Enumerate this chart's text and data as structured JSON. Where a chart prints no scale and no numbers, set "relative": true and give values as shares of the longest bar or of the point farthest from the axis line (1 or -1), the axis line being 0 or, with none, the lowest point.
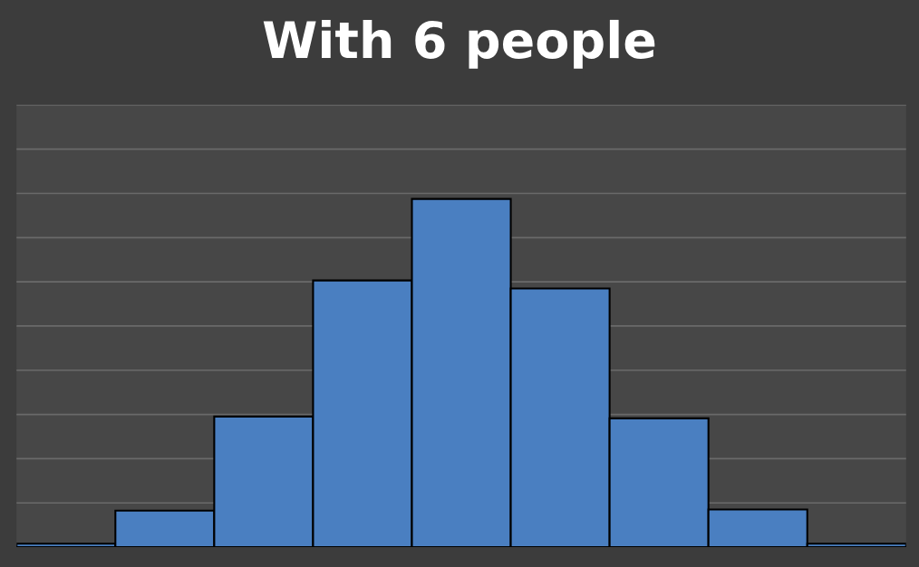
{
  "chart_data": {
    "type": "bar",
    "title": "With 6 people",
    "relative": true,
    "grid": "y",
    "categories": [
      null,
      null,
      null,
      null,
      null,
      null,
      null,
      null,
      null
    ],
    "values": [
      0.01,
      0.105,
      0.375,
      0.766,
      1,
      0.743,
      0.37,
      0.108,
      0.01
    ],
    "color": "#4a7fc1"
  }
}
